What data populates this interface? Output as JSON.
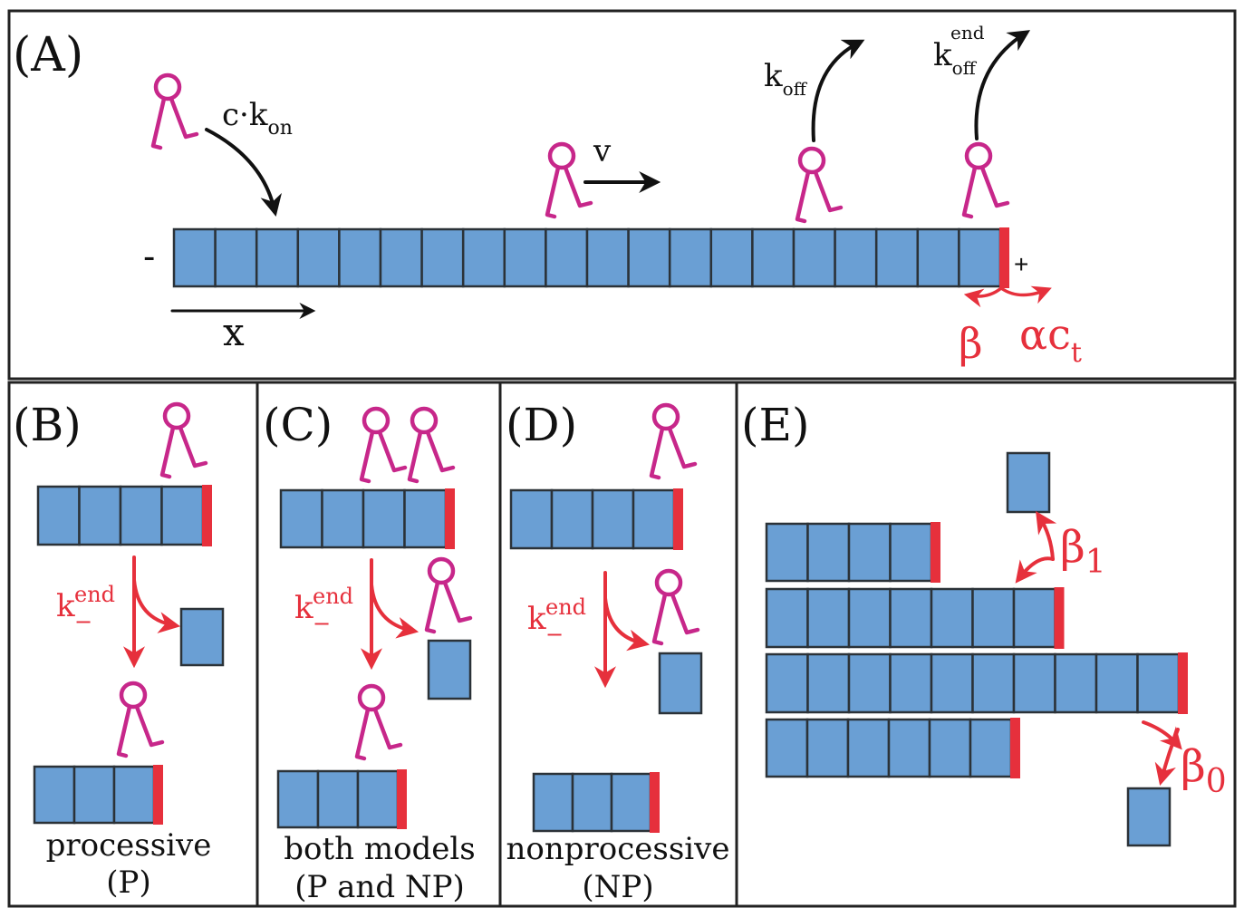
{
  "colors": {
    "border": "#222222",
    "segment_fill": "#6a9fd4",
    "segment_stroke": "#2b3238",
    "cap": "#e6303c",
    "motor": "#c7278a",
    "arrow": "#111111",
    "red_text": "#e6303c"
  },
  "panels": {
    "a": {
      "label": "(A)",
      "rate_on_main": "c·k",
      "rate_on_sub": "on",
      "velocity": "v",
      "koff_main": "k",
      "koff_sub": "off",
      "koff_end_main": "k",
      "koff_end_sub": "off",
      "koff_end_sup": "end",
      "minus_end": "-",
      "plus_end": "+",
      "axis_label": "x",
      "beta": "β",
      "alpha_c": "αc",
      "alpha_c_sub": "t"
    },
    "b": {
      "label": "(B)",
      "rate_main": "k",
      "rate_sup": "end",
      "rate_sub": "−",
      "caption_line1": "processive",
      "caption_line2": "(P)"
    },
    "c": {
      "label": "(C)",
      "rate_main": "k",
      "rate_sup": "end",
      "rate_sub": "−",
      "caption_line1": "both models",
      "caption_line2": "(P and NP)"
    },
    "d": {
      "label": "(D)",
      "rate_main": "k",
      "rate_sup": "end",
      "rate_sub": "−",
      "caption_line1": "nonprocessive",
      "caption_line2": "(NP)"
    },
    "e": {
      "label": "(E)",
      "beta1_main": "β",
      "beta1_sub": "1",
      "beta0_main": "β",
      "beta0_sub": "0"
    }
  }
}
